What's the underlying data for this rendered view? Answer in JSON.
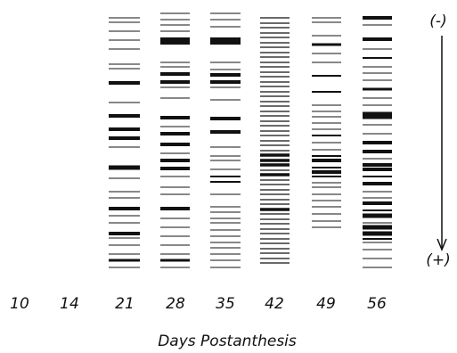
{
  "lanes": [
    "10",
    "14",
    "21",
    "28",
    "35",
    "42",
    "49",
    "56"
  ],
  "x_axis_label": "Days Postanthesis",
  "polarity": {
    "negative": "(-)",
    "positive": "(+)"
  }
}
